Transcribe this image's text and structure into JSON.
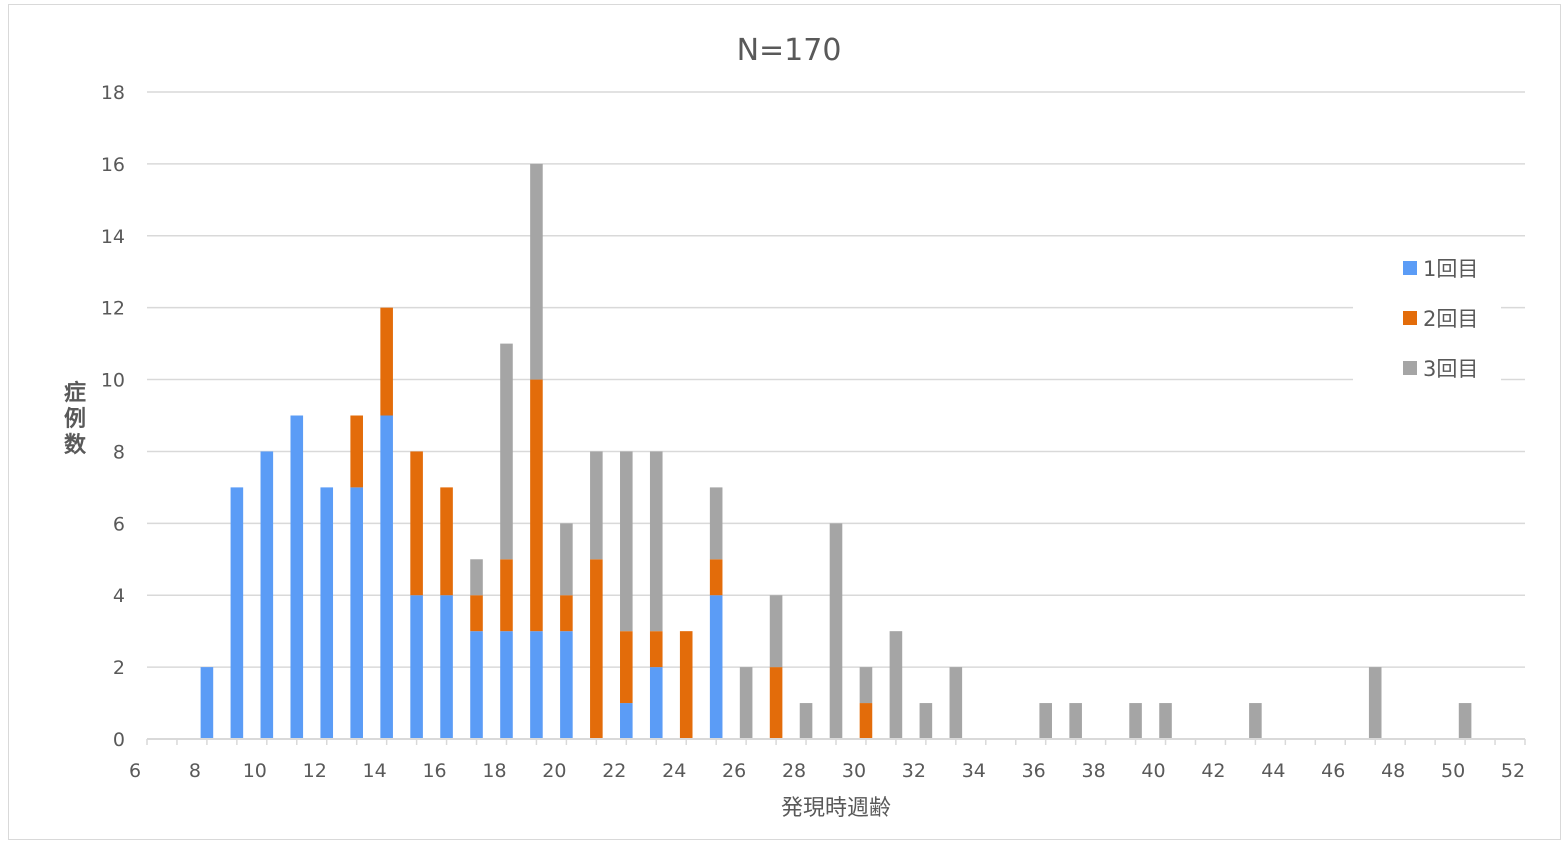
{
  "chart_data": {
    "type": "bar",
    "stacked": true,
    "title": "N=170",
    "xlabel": "発現時週齢",
    "ylabel": "症例数",
    "xlim": [
      6,
      52
    ],
    "ylim": [
      0,
      18
    ],
    "x_ticks": [
      6,
      8,
      10,
      12,
      14,
      16,
      18,
      20,
      22,
      24,
      26,
      28,
      30,
      32,
      34,
      36,
      38,
      40,
      42,
      44,
      46,
      48,
      50,
      52
    ],
    "y_ticks": [
      0,
      2,
      4,
      6,
      8,
      10,
      12,
      14,
      16,
      18
    ],
    "grid": true,
    "legend_position": "right",
    "x": [
      8,
      9,
      10,
      11,
      12,
      13,
      14,
      15,
      16,
      17,
      18,
      19,
      20,
      21,
      22,
      23,
      24,
      25,
      26,
      27,
      28,
      29,
      30,
      31,
      32,
      33,
      36,
      37,
      39,
      40,
      43,
      47,
      50
    ],
    "series": [
      {
        "name": "1回目",
        "color": "#5b9cf6",
        "values": [
          2,
          7,
          8,
          9,
          7,
          7,
          9,
          4,
          4,
          3,
          3,
          3,
          3,
          0,
          1,
          2,
          0,
          4,
          0,
          0,
          0,
          0,
          0,
          0,
          0,
          0,
          0,
          0,
          0,
          0,
          0,
          0,
          0
        ]
      },
      {
        "name": "2回目",
        "color": "#e36c0a",
        "values": [
          0,
          0,
          0,
          0,
          0,
          2,
          3,
          4,
          3,
          1,
          2,
          7,
          1,
          5,
          2,
          1,
          3,
          1,
          0,
          2,
          0,
          0,
          1,
          0,
          0,
          0,
          0,
          0,
          0,
          0,
          0,
          0,
          0
        ]
      },
      {
        "name": "3回目",
        "color": "#a5a5a5",
        "values": [
          0,
          0,
          0,
          0,
          0,
          0,
          0,
          0,
          0,
          1,
          6,
          6,
          2,
          3,
          5,
          5,
          0,
          2,
          2,
          2,
          1,
          6,
          1,
          3,
          1,
          2,
          1,
          1,
          1,
          1,
          1,
          2,
          1
        ]
      }
    ]
  }
}
